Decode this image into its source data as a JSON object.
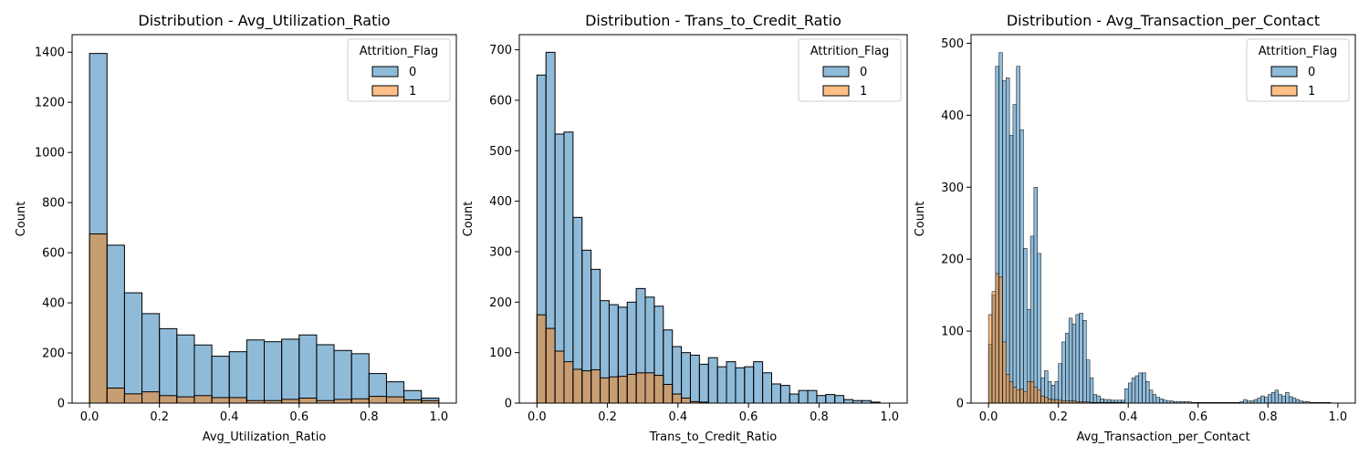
{
  "colors": {
    "class0": "#1f77b4",
    "class1": "#ff7f0e",
    "bar_alpha": 0.5,
    "edge": "#000000"
  },
  "chart_data": [
    {
      "type": "histogram",
      "title": "Distribution - Avg_Utilization_Ratio",
      "xlabel": "Avg_Utilization_Ratio",
      "ylabel": "Count",
      "xlim": [
        -0.05,
        1.05
      ],
      "ylim": [
        0,
        1470
      ],
      "xticks": [
        0.0,
        0.2,
        0.4,
        0.6,
        0.8,
        1.0
      ],
      "xtick_labels": [
        "0.0",
        "0.2",
        "0.4",
        "0.6",
        "0.8",
        "1.0"
      ],
      "yticks": [
        0,
        200,
        400,
        600,
        800,
        1000,
        1200,
        1400
      ],
      "ytick_labels": [
        "0",
        "200",
        "400",
        "600",
        "800",
        "1000",
        "1200",
        "1400"
      ],
      "bin_start": 0.0,
      "bin_width": 0.05,
      "legend": {
        "title": "Attrition_Flag",
        "placement": "upper right",
        "entries": [
          "0",
          "1"
        ]
      },
      "series": [
        {
          "name": "0",
          "values": [
            1395,
            630,
            440,
            357,
            297,
            272,
            232,
            187,
            205,
            252,
            245,
            255,
            272,
            233,
            210,
            197,
            118,
            85,
            50,
            20
          ]
        },
        {
          "name": "1",
          "values": [
            675,
            60,
            37,
            45,
            30,
            25,
            30,
            22,
            22,
            10,
            10,
            15,
            20,
            10,
            15,
            17,
            27,
            25,
            13,
            10
          ]
        }
      ]
    },
    {
      "type": "histogram",
      "title": "Distribution - Trans_to_Credit_Ratio",
      "xlabel": "Trans_to_Credit_Ratio",
      "ylabel": "Count",
      "xlim": [
        -0.05,
        1.05
      ],
      "ylim": [
        0,
        730
      ],
      "xticks": [
        0.0,
        0.2,
        0.4,
        0.6,
        0.8,
        1.0
      ],
      "xtick_labels": [
        "0.0",
        "0.2",
        "0.4",
        "0.6",
        "0.8",
        "1.0"
      ],
      "yticks": [
        0,
        100,
        200,
        300,
        400,
        500,
        600,
        700
      ],
      "ytick_labels": [
        "0",
        "100",
        "200",
        "300",
        "400",
        "500",
        "600",
        "700"
      ],
      "bin_start": 0.0,
      "bin_width": 0.0256,
      "legend": {
        "title": "Attrition_Flag",
        "placement": "upper right",
        "entries": [
          "0",
          "1"
        ]
      },
      "series": [
        {
          "name": "0",
          "values": [
            650,
            695,
            533,
            537,
            368,
            303,
            265,
            203,
            195,
            190,
            200,
            227,
            210,
            192,
            145,
            112,
            100,
            95,
            77,
            90,
            72,
            82,
            70,
            72,
            82,
            60,
            38,
            35,
            18,
            25,
            25,
            15,
            17,
            15,
            7,
            5,
            5,
            2
          ]
        },
        {
          "name": "1",
          "values": [
            175,
            148,
            103,
            82,
            67,
            64,
            66,
            50,
            52,
            53,
            57,
            60,
            60,
            55,
            37,
            18,
            10,
            3,
            2,
            0,
            0,
            0,
            0,
            0,
            0,
            0,
            0,
            0,
            0,
            0,
            0,
            0,
            0,
            0,
            0,
            0,
            0,
            0
          ]
        }
      ]
    },
    {
      "type": "histogram",
      "title": "Distribution - Avg_Transaction_per_Contact",
      "xlabel": "Avg_Transaction_per_Contact",
      "ylabel": "Count",
      "xlim": [
        -0.05,
        1.05
      ],
      "ylim": [
        0,
        512
      ],
      "xticks": [
        0.0,
        0.2,
        0.4,
        0.6,
        0.8,
        1.0
      ],
      "xtick_labels": [
        "0.0",
        "0.2",
        "0.4",
        "0.6",
        "0.8",
        "1.0"
      ],
      "yticks": [
        0,
        100,
        200,
        300,
        400,
        500
      ],
      "ytick_labels": [
        "0",
        "100",
        "200",
        "300",
        "400",
        "500"
      ],
      "bin_start": 0.0,
      "bin_width": 0.01,
      "legend": {
        "title": "Attrition_Flag",
        "placement": "upper right",
        "entries": [
          "0",
          "1"
        ]
      },
      "series": [
        {
          "name": "0",
          "values": [
            82,
            150,
            468,
            487,
            448,
            452,
            372,
            415,
            468,
            380,
            215,
            130,
            232,
            300,
            208,
            35,
            45,
            30,
            25,
            30,
            55,
            85,
            97,
            118,
            110,
            123,
            125,
            115,
            60,
            35,
            12,
            10,
            6,
            5,
            5,
            4,
            4,
            4,
            4,
            20,
            28,
            35,
            38,
            42,
            42,
            30,
            18,
            12,
            8,
            6,
            4,
            3,
            3,
            2,
            2,
            2,
            2,
            2,
            1,
            1,
            1,
            1,
            1,
            1,
            1,
            1,
            1,
            1,
            1,
            1,
            1,
            1,
            2,
            5,
            3,
            3,
            5,
            7,
            10,
            8,
            12,
            15,
            18,
            12,
            10,
            15,
            9,
            7,
            5,
            3,
            2,
            2,
            1,
            1,
            1,
            1,
            1,
            1,
            0,
            0
          ]
        },
        {
          "name": "1",
          "values": [
            123,
            155,
            180,
            175,
            85,
            40,
            30,
            22,
            18,
            20,
            16,
            30,
            30,
            22,
            18,
            10,
            8,
            6,
            5,
            5,
            4,
            3,
            3,
            3,
            3,
            2,
            2,
            2,
            2,
            1,
            1,
            1,
            1,
            1,
            1,
            1,
            1,
            1,
            1,
            0,
            0,
            0,
            0,
            0,
            0,
            0,
            0,
            0,
            0,
            0,
            0,
            0,
            0,
            0,
            0,
            0,
            0,
            0,
            0,
            0,
            0,
            0,
            0,
            0,
            0,
            0,
            0,
            0,
            0,
            0,
            0,
            0,
            0,
            0,
            0,
            0,
            0,
            0,
            0,
            0,
            0,
            0,
            0,
            0,
            0,
            0,
            0,
            0,
            0,
            0,
            0,
            0,
            0,
            0,
            0,
            0,
            0,
            0,
            0,
            0
          ]
        }
      ]
    }
  ]
}
